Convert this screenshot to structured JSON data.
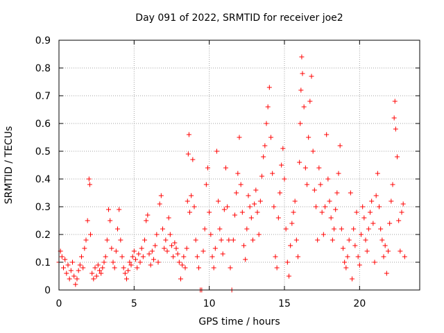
{
  "chart_data": {
    "type": "scatter",
    "title": "Day 091 of 2022, SRMTID for receiver joe2",
    "xlabel": "GPS time / hours",
    "ylabel": "SRMTID / TECUs",
    "xlim": [
      0,
      24
    ],
    "ylim": [
      0,
      0.9
    ],
    "xticks": [
      "0",
      "5",
      "10",
      "15",
      "20"
    ],
    "xtick_values": [
      0,
      5,
      10,
      15,
      20
    ],
    "yticks": [
      "0",
      "0.1",
      "0.2",
      "0.3",
      "0.4",
      "0.5",
      "0.6",
      "0.7",
      "0.8",
      "0.9"
    ],
    "ytick_values": [
      0,
      0.1,
      0.2,
      0.3,
      0.4,
      0.5,
      0.6,
      0.7,
      0.8,
      0.9
    ],
    "grid": true,
    "marker": "+",
    "color": "#ff0000",
    "series": [
      {
        "name": "SRMTID",
        "points": [
          [
            0.0,
            0.1
          ],
          [
            0.1,
            0.14
          ],
          [
            0.2,
            0.12
          ],
          [
            0.3,
            0.08
          ],
          [
            0.4,
            0.11
          ],
          [
            0.5,
            0.06
          ],
          [
            0.6,
            0.09
          ],
          [
            0.7,
            0.04
          ],
          [
            0.8,
            0.07
          ],
          [
            0.9,
            0.1
          ],
          [
            1.0,
            0.05
          ],
          [
            1.1,
            0.02
          ],
          [
            1.2,
            0.04
          ],
          [
            1.3,
            0.07
          ],
          [
            1.4,
            0.09
          ],
          [
            1.5,
            0.12
          ],
          [
            1.6,
            0.08
          ],
          [
            1.7,
            0.15
          ],
          [
            1.8,
            0.18
          ],
          [
            1.9,
            0.25
          ],
          [
            2.0,
            0.4
          ],
          [
            2.05,
            0.38
          ],
          [
            2.1,
            0.2
          ],
          [
            2.2,
            0.06
          ],
          [
            2.3,
            0.04
          ],
          [
            2.4,
            0.08
          ],
          [
            2.5,
            0.05
          ],
          [
            2.6,
            0.09
          ],
          [
            2.7,
            0.07
          ],
          [
            2.8,
            0.06
          ],
          [
            2.9,
            0.08
          ],
          [
            3.0,
            0.1
          ],
          [
            3.1,
            0.12
          ],
          [
            3.2,
            0.18
          ],
          [
            3.3,
            0.29
          ],
          [
            3.4,
            0.25
          ],
          [
            3.5,
            0.15
          ],
          [
            3.6,
            0.1
          ],
          [
            3.7,
            0.08
          ],
          [
            3.8,
            0.14
          ],
          [
            3.9,
            0.22
          ],
          [
            4.0,
            0.29
          ],
          [
            4.1,
            0.18
          ],
          [
            4.2,
            0.12
          ],
          [
            4.3,
            0.08
          ],
          [
            4.4,
            0.06
          ],
          [
            4.5,
            0.04
          ],
          [
            4.6,
            0.07
          ],
          [
            4.7,
            0.1
          ],
          [
            4.8,
            0.09
          ],
          [
            4.9,
            0.12
          ],
          [
            5.0,
            0.14
          ],
          [
            5.1,
            0.11
          ],
          [
            5.2,
            0.08
          ],
          [
            5.3,
            0.13
          ],
          [
            5.4,
            0.1
          ],
          [
            5.5,
            0.15
          ],
          [
            5.6,
            0.12
          ],
          [
            5.7,
            0.18
          ],
          [
            5.8,
            0.25
          ],
          [
            5.9,
            0.27
          ],
          [
            6.0,
            0.13
          ],
          [
            6.1,
            0.09
          ],
          [
            6.2,
            0.14
          ],
          [
            6.3,
            0.11
          ],
          [
            6.4,
            0.16
          ],
          [
            6.5,
            0.2
          ],
          [
            6.6,
            0.1
          ],
          [
            6.7,
            0.31
          ],
          [
            6.8,
            0.34
          ],
          [
            6.9,
            0.22
          ],
          [
            7.0,
            0.15
          ],
          [
            7.1,
            0.18
          ],
          [
            7.2,
            0.14
          ],
          [
            7.3,
            0.26
          ],
          [
            7.4,
            0.2
          ],
          [
            7.5,
            0.16
          ],
          [
            7.6,
            0.12
          ],
          [
            7.7,
            0.17
          ],
          [
            7.8,
            0.15
          ],
          [
            7.9,
            0.13
          ],
          [
            8.0,
            0.1
          ],
          [
            8.1,
            0.04
          ],
          [
            8.2,
            0.09
          ],
          [
            8.3,
            0.12
          ],
          [
            8.4,
            0.08
          ],
          [
            8.5,
            0.15
          ],
          [
            8.55,
            0.32
          ],
          [
            8.6,
            0.49
          ],
          [
            8.65,
            0.56
          ],
          [
            8.7,
            0.28
          ],
          [
            8.8,
            0.34
          ],
          [
            8.9,
            0.47
          ],
          [
            9.0,
            0.3
          ],
          [
            9.1,
            0.18
          ],
          [
            9.2,
            0.12
          ],
          [
            9.3,
            0.08
          ],
          [
            9.4,
            0.0
          ],
          [
            9.5,
            0.0
          ],
          [
            9.6,
            0.14
          ],
          [
            9.7,
            0.22
          ],
          [
            9.8,
            0.38
          ],
          [
            9.9,
            0.44
          ],
          [
            10.0,
            0.28
          ],
          [
            10.1,
            0.2
          ],
          [
            10.2,
            0.12
          ],
          [
            10.3,
            0.08
          ],
          [
            10.4,
            0.15
          ],
          [
            10.5,
            0.5
          ],
          [
            10.6,
            0.32
          ],
          [
            10.7,
            0.22
          ],
          [
            10.8,
            0.18
          ],
          [
            10.9,
            0.13
          ],
          [
            11.0,
            0.29
          ],
          [
            11.1,
            0.44
          ],
          [
            11.2,
            0.3
          ],
          [
            11.3,
            0.18
          ],
          [
            11.4,
            0.08
          ],
          [
            11.5,
            0.0
          ],
          [
            11.6,
            0.18
          ],
          [
            11.7,
            0.27
          ],
          [
            11.8,
            0.35
          ],
          [
            11.9,
            0.42
          ],
          [
            12.0,
            0.55
          ],
          [
            12.1,
            0.38
          ],
          [
            12.2,
            0.28
          ],
          [
            12.3,
            0.16
          ],
          [
            12.4,
            0.11
          ],
          [
            12.5,
            0.22
          ],
          [
            12.6,
            0.34
          ],
          [
            12.7,
            0.3
          ],
          [
            12.8,
            0.26
          ],
          [
            12.9,
            0.18
          ],
          [
            13.0,
            0.31
          ],
          [
            13.1,
            0.36
          ],
          [
            13.2,
            0.28
          ],
          [
            13.3,
            0.2
          ],
          [
            13.4,
            0.32
          ],
          [
            13.5,
            0.41
          ],
          [
            13.6,
            0.48
          ],
          [
            13.7,
            0.52
          ],
          [
            13.8,
            0.6
          ],
          [
            13.9,
            0.66
          ],
          [
            14.0,
            0.73
          ],
          [
            14.1,
            0.55
          ],
          [
            14.2,
            0.42
          ],
          [
            14.3,
            0.3
          ],
          [
            14.4,
            0.12
          ],
          [
            14.5,
            0.08
          ],
          [
            14.6,
            0.26
          ],
          [
            14.7,
            0.35
          ],
          [
            14.8,
            0.45
          ],
          [
            14.9,
            0.51
          ],
          [
            15.0,
            0.4
          ],
          [
            15.1,
            0.22
          ],
          [
            15.2,
            0.1
          ],
          [
            15.3,
            0.05
          ],
          [
            15.4,
            0.16
          ],
          [
            15.5,
            0.24
          ],
          [
            15.6,
            0.28
          ],
          [
            15.7,
            0.32
          ],
          [
            15.8,
            0.18
          ],
          [
            15.9,
            0.12
          ],
          [
            16.0,
            0.46
          ],
          [
            16.05,
            0.6
          ],
          [
            16.1,
            0.72
          ],
          [
            16.15,
            0.84
          ],
          [
            16.2,
            0.78
          ],
          [
            16.3,
            0.66
          ],
          [
            16.4,
            0.44
          ],
          [
            16.5,
            0.38
          ],
          [
            16.6,
            0.55
          ],
          [
            16.7,
            0.68
          ],
          [
            16.8,
            0.77
          ],
          [
            16.9,
            0.5
          ],
          [
            17.0,
            0.36
          ],
          [
            17.1,
            0.3
          ],
          [
            17.2,
            0.18
          ],
          [
            17.3,
            0.44
          ],
          [
            17.4,
            0.38
          ],
          [
            17.5,
            0.28
          ],
          [
            17.6,
            0.2
          ],
          [
            17.7,
            0.3
          ],
          [
            17.8,
            0.56
          ],
          [
            17.9,
            0.4
          ],
          [
            18.0,
            0.32
          ],
          [
            18.1,
            0.26
          ],
          [
            18.2,
            0.18
          ],
          [
            18.3,
            0.22
          ],
          [
            18.4,
            0.29
          ],
          [
            18.5,
            0.35
          ],
          [
            18.6,
            0.42
          ],
          [
            18.7,
            0.52
          ],
          [
            18.8,
            0.22
          ],
          [
            18.9,
            0.15
          ],
          [
            19.0,
            0.1
          ],
          [
            19.1,
            0.08
          ],
          [
            19.2,
            0.12
          ],
          [
            19.3,
            0.18
          ],
          [
            19.4,
            0.35
          ],
          [
            19.5,
            0.04
          ],
          [
            19.6,
            0.22
          ],
          [
            19.7,
            0.16
          ],
          [
            19.8,
            0.28
          ],
          [
            19.9,
            0.12
          ],
          [
            20.0,
            0.09
          ],
          [
            20.1,
            0.2
          ],
          [
            20.2,
            0.3
          ],
          [
            20.3,
            0.26
          ],
          [
            20.4,
            0.18
          ],
          [
            20.5,
            0.14
          ],
          [
            20.6,
            0.22
          ],
          [
            20.7,
            0.28
          ],
          [
            20.8,
            0.32
          ],
          [
            20.9,
            0.24
          ],
          [
            21.0,
            0.1
          ],
          [
            21.1,
            0.34
          ],
          [
            21.2,
            0.42
          ],
          [
            21.3,
            0.3
          ],
          [
            21.4,
            0.22
          ],
          [
            21.5,
            0.18
          ],
          [
            21.6,
            0.12
          ],
          [
            21.7,
            0.16
          ],
          [
            21.8,
            0.06
          ],
          [
            21.9,
            0.14
          ],
          [
            22.0,
            0.24
          ],
          [
            22.1,
            0.32
          ],
          [
            22.2,
            0.38
          ],
          [
            22.3,
            0.62
          ],
          [
            22.35,
            0.68
          ],
          [
            22.4,
            0.58
          ],
          [
            22.5,
            0.48
          ],
          [
            22.6,
            0.25
          ],
          [
            22.7,
            0.14
          ],
          [
            22.8,
            0.28
          ],
          [
            22.9,
            0.31
          ],
          [
            23.0,
            0.12
          ]
        ]
      }
    ]
  }
}
